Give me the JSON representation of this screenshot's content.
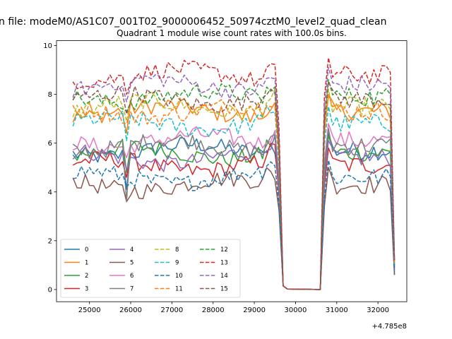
{
  "figure": {
    "suptitle": "n file: modeM0/AS1C07_001T02_9000006452_50974cztM0_level2_quad_clean",
    "title": "Quadrant 1 module wise count rates with 100.0s bins.",
    "offset_label": "+4.785e8"
  },
  "chart_data": {
    "type": "line",
    "title": "Quadrant 1 module wise count rates with 100.0s bins.",
    "xlabel": "",
    "ylabel": "",
    "x_offset": 478500000,
    "xlim": [
      24200,
      32700
    ],
    "ylim": [
      -0.5,
      10.2
    ],
    "xticks": [
      25000,
      26000,
      27000,
      28000,
      29000,
      30000,
      31000,
      32000
    ],
    "yticks": [
      0,
      2,
      4,
      6,
      8,
      10
    ],
    "grid": false,
    "legend_position": "lower-left",
    "legend_columns": 4,
    "segments": {
      "x_start": 24600,
      "step": 100,
      "active1_end": 29500,
      "dip_x": 25900,
      "gap_points": [
        {
          "x": 29600,
          "value": 5.2
        },
        {
          "x": 29700,
          "value": 0.15
        },
        {
          "x": 29800,
          "value": 0.02
        },
        {
          "x": 30600,
          "value": 0.0
        }
      ],
      "active2_start": 30700,
      "active2_end": 32300,
      "end_x": 32400
    },
    "series": [
      {
        "name": "0",
        "color": "#1f77b4",
        "dash": "solid",
        "level": 5.7,
        "dip": 4.1,
        "end": 0.6
      },
      {
        "name": "1",
        "color": "#ff7f0e",
        "dash": "solid",
        "level": 7.3,
        "dip": 6.4,
        "end": 1.1
      },
      {
        "name": "2",
        "color": "#2ca02c",
        "dash": "solid",
        "level": 5.6,
        "dip": 4.8,
        "end": 0.9
      },
      {
        "name": "3",
        "color": "#d62728",
        "dash": "solid",
        "level": 5.1,
        "dip": 4.6,
        "end": 0.8
      },
      {
        "name": "4",
        "color": "#9467bd",
        "dash": "solid",
        "level": 5.4,
        "dip": 4.9,
        "end": 0.9
      },
      {
        "name": "5",
        "color": "#8c564b",
        "dash": "solid",
        "level": 4.3,
        "dip": 3.6,
        "end": 0.6
      },
      {
        "name": "6",
        "color": "#e377c2",
        "dash": "solid",
        "level": 6.1,
        "dip": 5.4,
        "end": 1.0
      },
      {
        "name": "7",
        "color": "#7f7f7f",
        "dash": "solid",
        "level": 5.9,
        "dip": 3.6,
        "end": 0.9
      },
      {
        "name": "8",
        "color": "#bcbd22",
        "dash": "dashed",
        "level": 7.5,
        "dip": 6.9,
        "end": 1.1
      },
      {
        "name": "9",
        "color": "#17becf",
        "dash": "dashed",
        "level": 6.8,
        "dip": 6.1,
        "end": 1.0
      },
      {
        "name": "10",
        "color": "#1f77b4",
        "dash": "dashed",
        "level": 4.6,
        "dip": 4.2,
        "end": 0.7
      },
      {
        "name": "11",
        "color": "#ff7f0e",
        "dash": "dashed",
        "level": 7.3,
        "dip": 6.8,
        "end": 1.1
      },
      {
        "name": "12",
        "color": "#2ca02c",
        "dash": "dashed",
        "level": 7.9,
        "dip": 7.3,
        "end": 1.2
      },
      {
        "name": "13",
        "color": "#d62728",
        "dash": "dashed",
        "level": 8.8,
        "dip": 8.0,
        "end": 1.3
      },
      {
        "name": "14",
        "color": "#9467bd",
        "dash": "dashed",
        "level": 8.4,
        "dip": 7.7,
        "end": 1.2
      },
      {
        "name": "15",
        "color": "#8c564b",
        "dash": "dashed",
        "level": 7.8,
        "dip": 7.2,
        "end": 1.2
      }
    ]
  }
}
